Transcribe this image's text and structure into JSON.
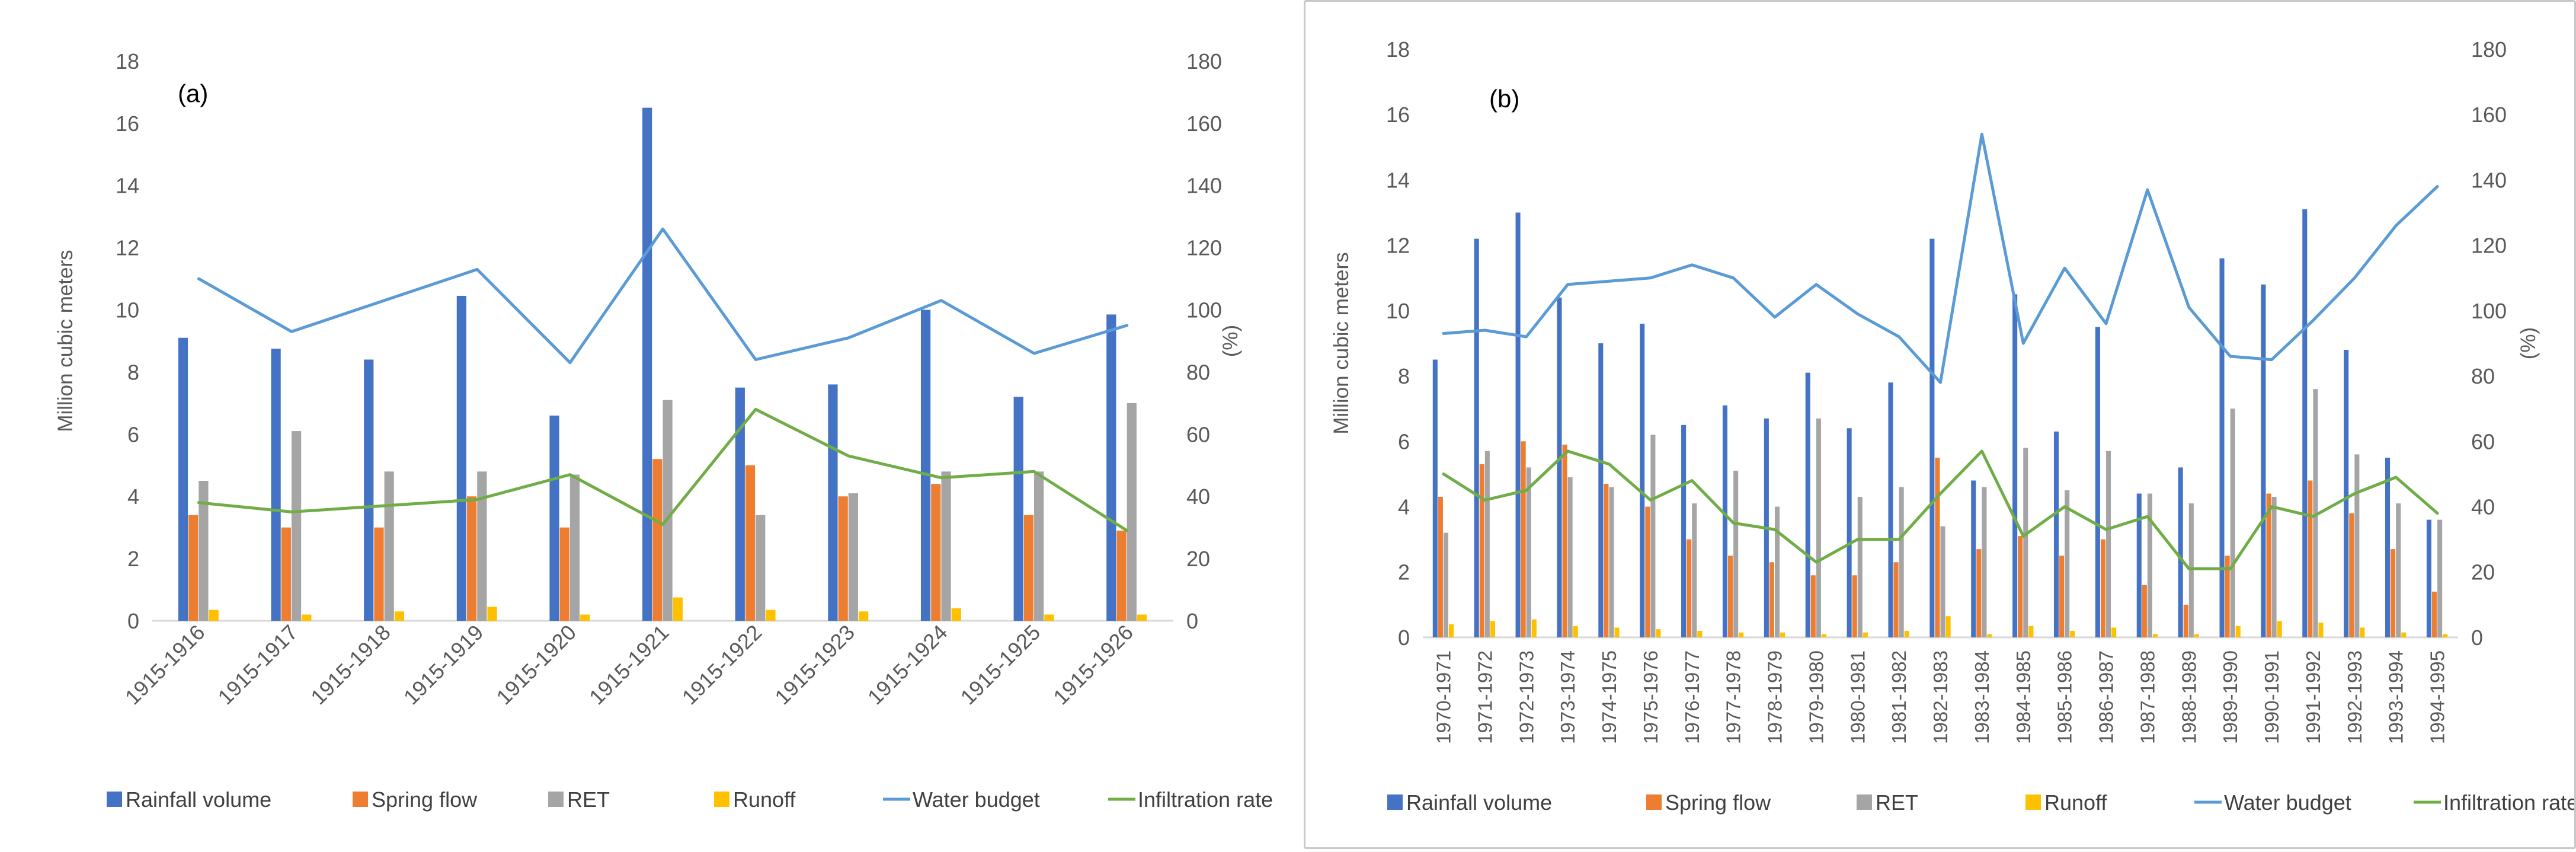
{
  "chart_data": [
    {
      "type": "bar+line",
      "panel_label": "(a)",
      "ylabel": "Million cubic meters",
      "y2label": "(%)",
      "ylim": [
        0,
        18
      ],
      "y_ticks": [
        0,
        2,
        4,
        6,
        8,
        10,
        12,
        14,
        16,
        18
      ],
      "y2lim": [
        0,
        180
      ],
      "y2_ticks": [
        0,
        20,
        40,
        60,
        80,
        100,
        120,
        140,
        160,
        180
      ],
      "grid": false,
      "legend_position": "bottom",
      "categories": [
        "1915-1916",
        "1915-1917",
        "1915-1918",
        "1915-1919",
        "1915-1920",
        "1915-1921",
        "1915-1922",
        "1915-1923",
        "1915-1924",
        "1915-1925",
        "1915-1926"
      ],
      "series": [
        {
          "name": "Rainfall volume",
          "kind": "bar",
          "axis": "left",
          "color": "#4472c4",
          "values": [
            9.1,
            8.75,
            8.4,
            10.45,
            6.6,
            16.5,
            7.5,
            7.6,
            10.0,
            7.2,
            9.85
          ]
        },
        {
          "name": "Spring flow",
          "kind": "bar",
          "axis": "left",
          "color": "#ed7d31",
          "values": [
            3.4,
            3.0,
            3.0,
            4.0,
            3.0,
            5.2,
            5.0,
            4.0,
            4.4,
            3.4,
            2.9
          ]
        },
        {
          "name": "RET",
          "kind": "bar",
          "axis": "left",
          "color": "#a5a5a5",
          "values": [
            4.5,
            6.1,
            4.8,
            4.8,
            4.7,
            7.1,
            3.4,
            4.1,
            4.8,
            4.8,
            7.0
          ]
        },
        {
          "name": "Runoff",
          "kind": "bar",
          "axis": "left",
          "color": "#ffc000",
          "values": [
            0.35,
            0.2,
            0.3,
            0.45,
            0.2,
            0.75,
            0.35,
            0.3,
            0.4,
            0.2,
            0.2
          ]
        },
        {
          "name": "Water budget",
          "kind": "line",
          "axis": "right",
          "color": "#5b9bd5",
          "values": [
            110,
            93,
            103,
            113,
            83,
            126,
            84,
            91,
            103,
            86,
            95
          ]
        },
        {
          "name": "Infiltration rate",
          "kind": "line",
          "axis": "right",
          "color": "#70ad47",
          "values": [
            38,
            35,
            37,
            39,
            47,
            31,
            68,
            53,
            46,
            48,
            29
          ]
        }
      ]
    },
    {
      "type": "bar+line",
      "panel_label": "(b)",
      "ylabel": "Million cubic meters",
      "y2label": "(%)",
      "ylim": [
        0,
        18
      ],
      "y_ticks": [
        0,
        2,
        4,
        6,
        8,
        10,
        12,
        14,
        16,
        18
      ],
      "y2lim": [
        0,
        180
      ],
      "y2_ticks": [
        0,
        20,
        40,
        60,
        80,
        100,
        120,
        140,
        160,
        180
      ],
      "grid": false,
      "legend_position": "bottom",
      "categories": [
        "1970-1971",
        "1971-1972",
        "1972-1973",
        "1973-1974",
        "1974-1975",
        "1975-1976",
        "1976-1977",
        "1977-1978",
        "1978-1979",
        "1979-1980",
        "1980-1981",
        "1981-1982",
        "1982-1983",
        "1983-1984",
        "1984-1985",
        "1985-1986",
        "1986-1987",
        "1987-1988",
        "1988-1989",
        "1989-1990",
        "1990-1991",
        "1991-1992",
        "1992-1993",
        "1993-1994",
        "1994-1995"
      ],
      "series": [
        {
          "name": "Rainfall volume",
          "kind": "bar",
          "axis": "left",
          "color": "#4472c4",
          "values": [
            8.5,
            12.2,
            13.0,
            10.4,
            9.0,
            9.6,
            6.5,
            7.1,
            6.7,
            8.1,
            6.4,
            7.8,
            12.2,
            4.8,
            10.5,
            6.3,
            9.5,
            4.4,
            5.2,
            11.6,
            10.8,
            13.1,
            8.8,
            5.5,
            3.6
          ]
        },
        {
          "name": "Spring flow",
          "kind": "bar",
          "axis": "left",
          "color": "#ed7d31",
          "values": [
            4.3,
            5.3,
            6.0,
            5.9,
            4.7,
            4.0,
            3.0,
            2.5,
            2.3,
            1.9,
            1.9,
            2.3,
            5.5,
            2.7,
            3.1,
            2.5,
            3.0,
            1.6,
            1.0,
            2.5,
            4.4,
            4.8,
            3.8,
            2.7,
            1.4
          ]
        },
        {
          "name": "RET",
          "kind": "bar",
          "axis": "left",
          "color": "#a5a5a5",
          "values": [
            3.2,
            5.7,
            5.2,
            4.9,
            4.6,
            6.2,
            4.1,
            5.1,
            4.0,
            6.7,
            4.3,
            4.6,
            3.4,
            4.6,
            5.8,
            4.5,
            5.7,
            4.4,
            4.1,
            7.0,
            4.3,
            7.6,
            5.6,
            4.1,
            3.6
          ]
        },
        {
          "name": "Runoff",
          "kind": "bar",
          "axis": "left",
          "color": "#ffc000",
          "values": [
            0.4,
            0.5,
            0.55,
            0.35,
            0.3,
            0.25,
            0.2,
            0.15,
            0.15,
            0.1,
            0.15,
            0.2,
            0.65,
            0.1,
            0.35,
            0.2,
            0.3,
            0.1,
            0.1,
            0.35,
            0.5,
            0.45,
            0.3,
            0.15,
            0.1
          ]
        },
        {
          "name": "Water budget",
          "kind": "line",
          "axis": "right",
          "color": "#5b9bd5",
          "values": [
            93,
            94,
            92,
            108,
            109,
            110,
            114,
            110,
            98,
            108,
            99,
            92,
            78,
            154,
            90,
            113,
            96,
            137,
            101,
            86,
            85,
            97,
            110,
            126,
            138
          ]
        },
        {
          "name": "Infiltration rate",
          "kind": "line",
          "axis": "right",
          "color": "#70ad47",
          "values": [
            50,
            42,
            45,
            57,
            53,
            42,
            48,
            35,
            33,
            23,
            30,
            30,
            44,
            57,
            31,
            40,
            33,
            37,
            21,
            21,
            40,
            37,
            44,
            49,
            38
          ]
        }
      ]
    }
  ]
}
